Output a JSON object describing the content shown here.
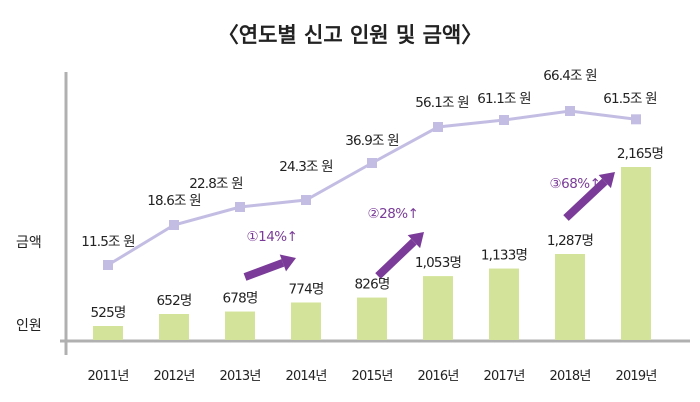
{
  "chart_data": {
    "type": "bar+line",
    "title": "〈연도별 신고 인원 및 금액〉",
    "categories": [
      "2011년",
      "2012년",
      "2013년",
      "2014년",
      "2015년",
      "2016년",
      "2017년",
      "2018년",
      "2019년"
    ],
    "series": [
      {
        "name": "인원",
        "type": "bar",
        "unit": "명",
        "color": "#d3e49a",
        "values": [
          525,
          652,
          678,
          774,
          826,
          1053,
          1133,
          1287,
          2165
        ],
        "labels": [
          "525명",
          "652명",
          "678명",
          "774명",
          "826명",
          "1,053명",
          "1,133명",
          "1,287명",
          "2,165명"
        ]
      },
      {
        "name": "금액",
        "type": "line",
        "unit": "조 원",
        "color": "#c4bde3",
        "values": [
          11.5,
          18.6,
          22.8,
          24.3,
          36.9,
          56.1,
          61.1,
          66.4,
          61.5
        ],
        "labels": [
          "11.5조 원",
          "18.6조 원",
          "22.8조 원",
          "24.3조 원",
          "36.9조 원",
          "56.1조 원",
          "61.1조 원",
          "66.4조 원",
          "61.5조 원"
        ]
      }
    ],
    "row_labels": {
      "amount": "금액",
      "people": "인원"
    },
    "annotations": [
      {
        "text": "①14%↑",
        "from": "2013년",
        "to": "2014년"
      },
      {
        "text": "②28%↑",
        "from": "2015년",
        "to": "2016년"
      },
      {
        "text": "③68%↑",
        "from": "2018년",
        "to": "2019년"
      }
    ],
    "annotation_color": "#7a3c98",
    "axis_color": "#b0b0b0",
    "grid": false,
    "legend": "none"
  }
}
